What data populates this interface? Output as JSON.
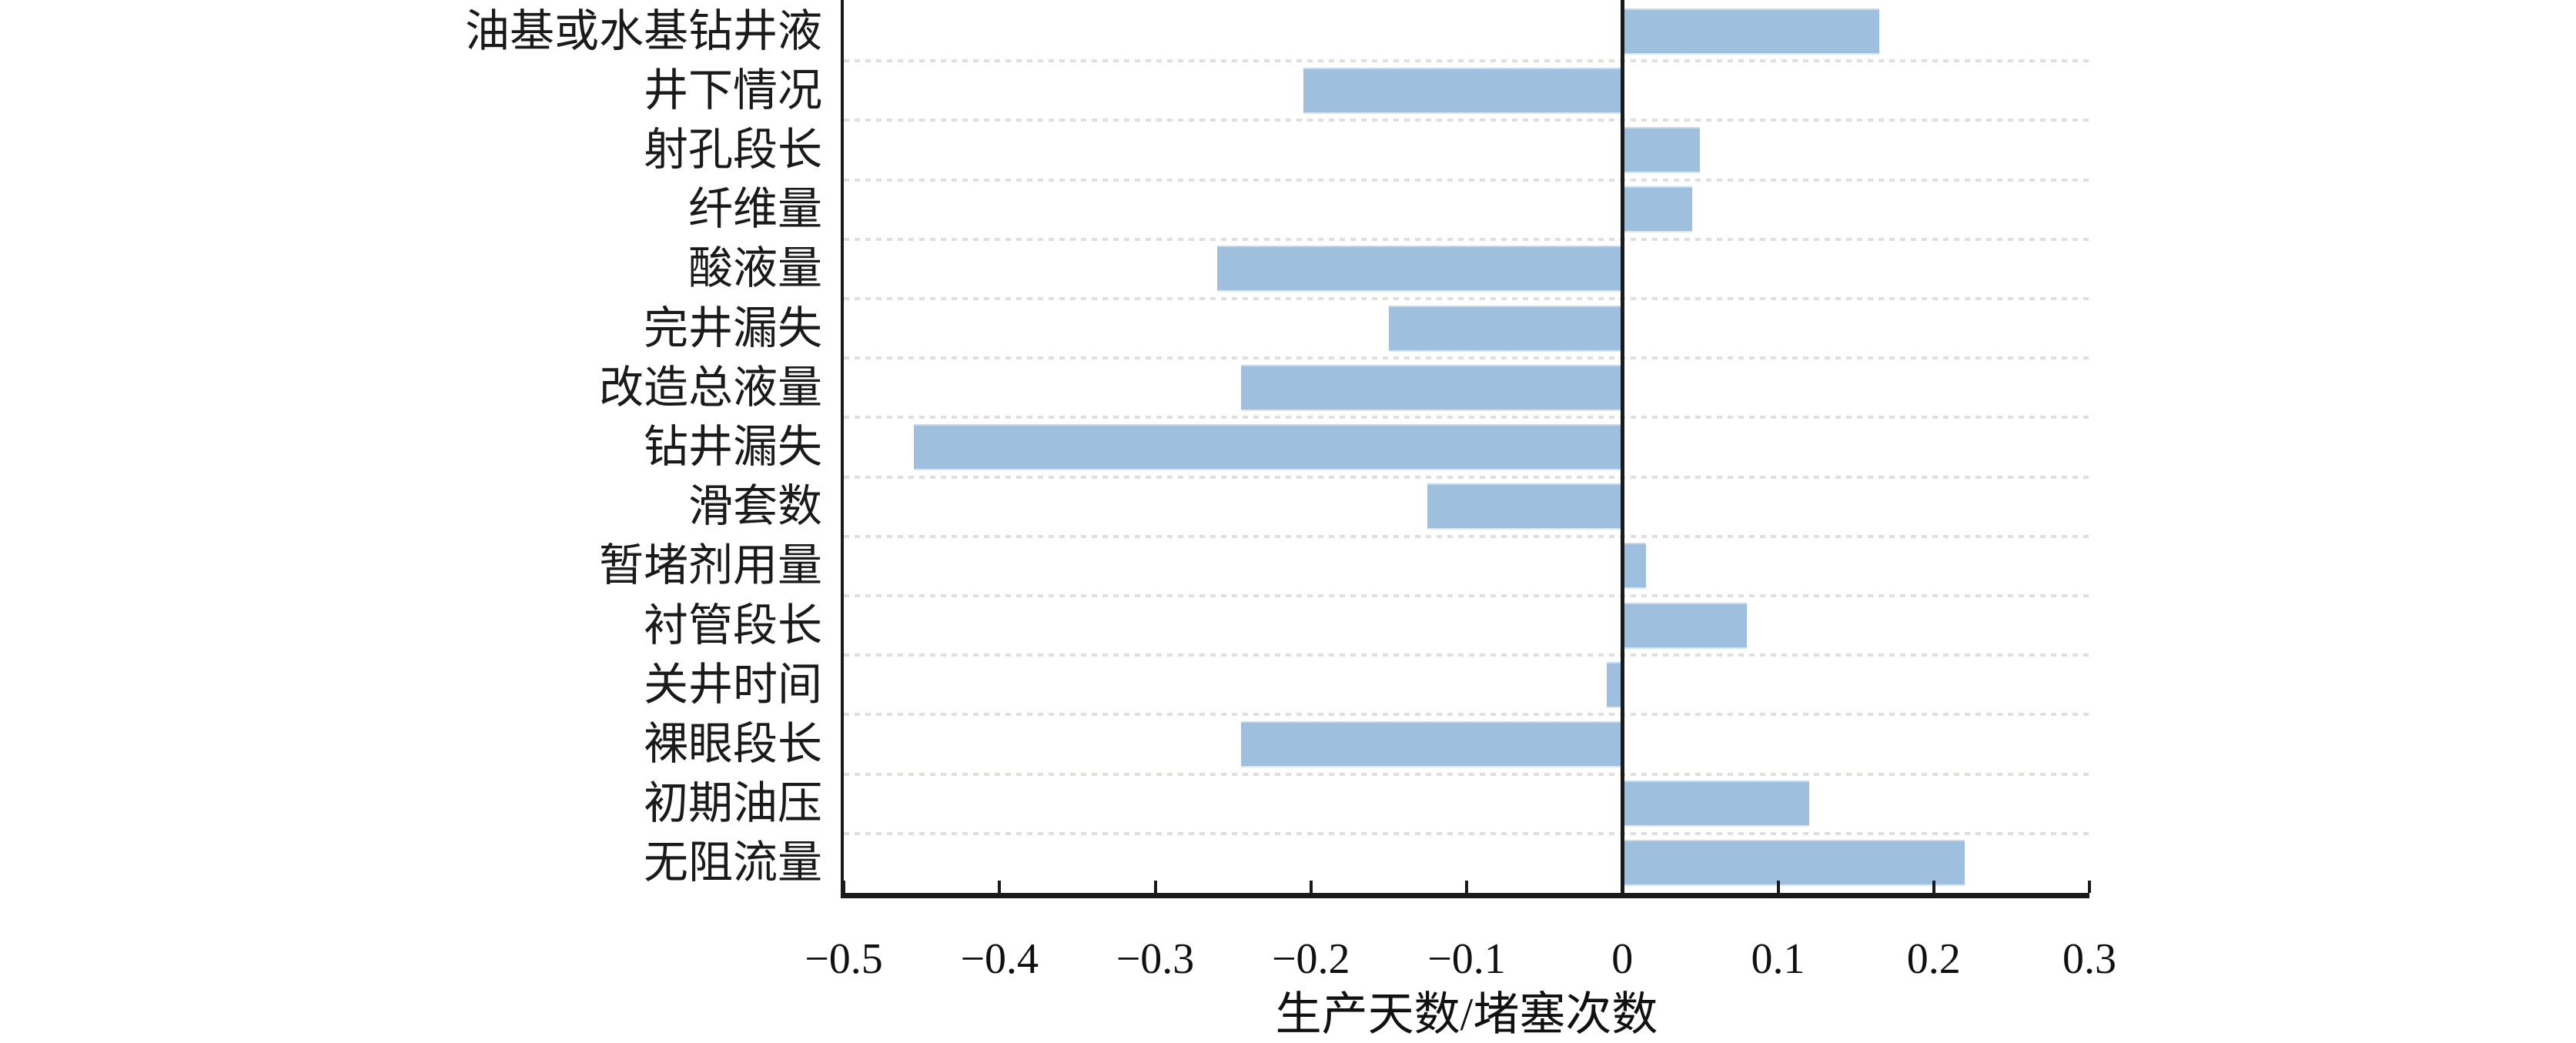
{
  "figure": {
    "background": "#ffffff",
    "axis_color": "#1a1a1a",
    "gridline_color": "#e1dedb"
  },
  "chart_data": {
    "type": "bar",
    "orientation": "horizontal",
    "title": "",
    "xlabel": "生产天数/堵塞次数",
    "ylabel": "",
    "xlim": [
      -0.5,
      0.3
    ],
    "grid": "horizontal dashed between category rows",
    "legend": "none",
    "bar_color": "#9ebfde",
    "categories": [
      "油基或水基钻井液",
      "井下情况",
      "射孔段长",
      "纤维量",
      "酸液量",
      "完井漏失",
      "改造总液量",
      "钻井漏失",
      "滑套数",
      "暂堵剂用量",
      "衬管段长",
      "关井时间",
      "裸眼段长",
      "初期油压",
      "无阻流量"
    ],
    "values": [
      0.165,
      -0.205,
      0.05,
      0.045,
      -0.26,
      -0.15,
      -0.245,
      -0.455,
      -0.125,
      0.015,
      0.08,
      -0.01,
      -0.245,
      0.12,
      0.22
    ],
    "x_tick_values": [
      -0.5,
      -0.4,
      -0.3,
      -0.2,
      -0.1,
      0,
      0.1,
      0.2,
      0.3
    ],
    "x_tick_labels": [
      "−0.5",
      "−0.4",
      "−0.3",
      "−0.2",
      "−0.1",
      "0",
      "0.1",
      "0.2",
      "0.3"
    ]
  }
}
